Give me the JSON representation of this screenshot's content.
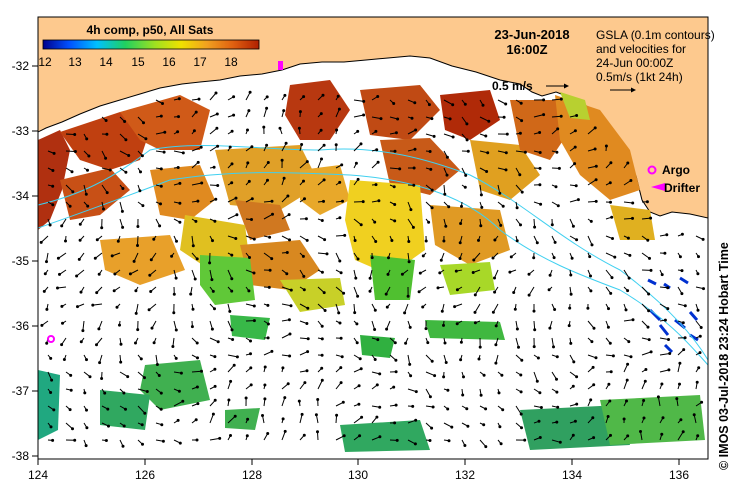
{
  "colorbar": {
    "title": "4h comp, p50, All Sats",
    "ticks": [
      "12",
      "13",
      "14",
      "15",
      "16",
      "17",
      "18"
    ],
    "stops": [
      "#00008b",
      "#0050ff",
      "#00c0ff",
      "#20d060",
      "#a0e020",
      "#f0e000",
      "#f0a020",
      "#e06010",
      "#b02000"
    ]
  },
  "header": {
    "date": "23-Jun-2018",
    "time": "16:00Z",
    "gsla_line1": "GSLA (0.1m contours)",
    "gsla_line2": "and velocities for",
    "gsla_line3": "24-Jun 00:00Z",
    "gsla_line4": "0.5m/s (1kt 24h)",
    "scale_label": "0.5 m/s"
  },
  "legend": {
    "argo": "Argo",
    "drifter": "Drifter"
  },
  "axes": {
    "lon_ticks": [
      "124",
      "126",
      "128",
      "130",
      "132",
      "134",
      "136"
    ],
    "lat_ticks": [
      "-32",
      "-33",
      "-34",
      "-35",
      "-36",
      "-37",
      "-38"
    ]
  },
  "credit": "©  IMOS 03-Jul-2018 23:24 Hobart Time",
  "colors": {
    "land": "#fdc98e",
    "ocean": "#ffffff",
    "contour": "#40d0f0"
  }
}
